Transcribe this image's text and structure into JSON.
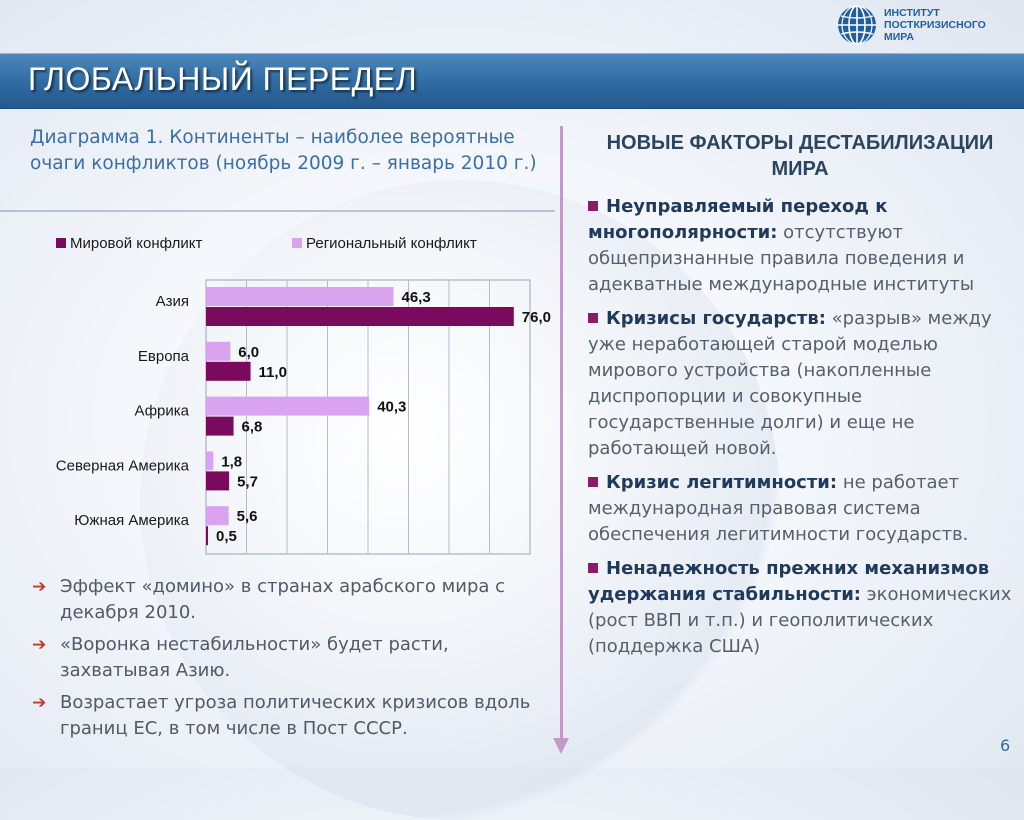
{
  "header": {
    "logo_lines": [
      "ИНСТИТУТ",
      "ПОСТКРИЗИСНОГО",
      "МИРА"
    ],
    "title": "ГЛОБАЛЬНЫЙ ПЕРЕДЕЛ"
  },
  "left": {
    "chart_title": "Диаграмма 1. Континенты – наиболее вероятные очаги конфликтов (ноябрь 2009 г. – январь 2010 г.)",
    "bullets": [
      "Эффект «домино» в странах арабского мира с декабря 2010.",
      "«Воронка нестабильности» будет расти, захватывая Азию.",
      "Возрастает угроза политических кризисов вдоль границ ЕС, в том числе в Пост СССР."
    ]
  },
  "chart_data": {
    "type": "bar",
    "orientation": "horizontal",
    "categories": [
      "Азия",
      "Европа",
      "Африка",
      "Северная Америка",
      "Южная Америка"
    ],
    "series": [
      {
        "name": "Региональный конфликт",
        "color": "#d9a3f0",
        "values": [
          46.3,
          6.0,
          40.3,
          1.8,
          5.6
        ],
        "labels": [
          "46,3",
          "6,0",
          "40,3",
          "1,8",
          "5,6"
        ]
      },
      {
        "name": "Мировой конфликт",
        "color": "#7a0a5e",
        "values": [
          76.0,
          11.0,
          6.8,
          5.7,
          0.5
        ],
        "labels": [
          "76,0",
          "11,0",
          "6,8",
          "5,7",
          "0,5"
        ]
      }
    ],
    "xlim": [
      0,
      80
    ],
    "grid": true,
    "legend_position": "top",
    "legend_order": [
      "Мировой конфликт",
      "Региональный конфликт"
    ]
  },
  "right": {
    "heading": "НОВЫЕ ФАКТОРЫ ДЕСТАБИЛИЗАЦИИ МИРА",
    "factors": [
      {
        "bold": "Неуправляемый переход к многополярности:",
        "text": " отсутствуют общепризнанные правила поведения и адекватные международные институты"
      },
      {
        "bold": "Кризисы государств:",
        "text": " «разрыв» между уже неработающей старой моделью мирового устройства (накопленные диспропорции и совокупные государственные долги) и еще не работающей новой."
      },
      {
        "bold": "Кризис легитимности:",
        "text": " не работает международная правовая система обеспечения легитимности государств."
      },
      {
        "bold": "Ненадежность прежних механизмов удержания стабильности:",
        "text": " экономических (рост ВВП и т.п.) и геополитических (поддержка США)"
      }
    ]
  },
  "footer": {
    "page": "6"
  },
  "colors": {
    "title_bar": "#2f6aa1",
    "accent_purple": "#8b1a6b",
    "arrow_red": "#c0392b"
  }
}
